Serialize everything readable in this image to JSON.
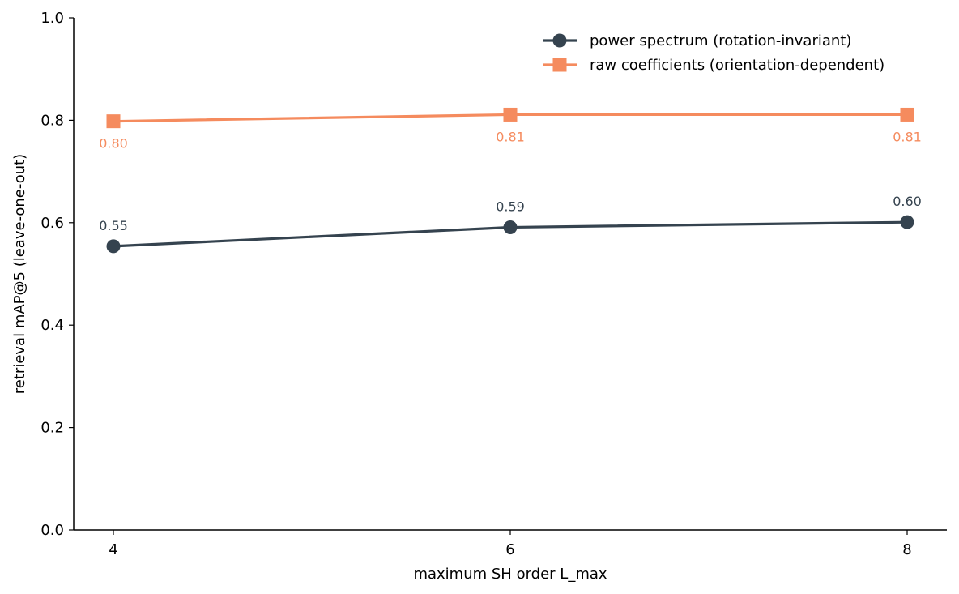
{
  "chart_data": {
    "type": "line",
    "title": "",
    "xlabel": "maximum SH order L_max",
    "ylabel": "retrieval mAP@5 (leave-one-out)",
    "x": [
      4,
      6,
      8
    ],
    "x_ticks": [
      "4",
      "6",
      "8"
    ],
    "ylim": [
      0,
      1.0
    ],
    "y_ticks": [
      "0.0",
      "0.2",
      "0.4",
      "0.6",
      "0.8",
      "1.0"
    ],
    "grid": false,
    "legend_position": "top-right",
    "series": [
      {
        "name": "power spectrum (rotation-invariant)",
        "values": [
          0.554,
          0.591,
          0.601
        ],
        "labels": [
          "0.55",
          "0.59",
          "0.60"
        ],
        "marker": "circle",
        "color": "#35434f",
        "label_position": "above"
      },
      {
        "name": "raw coefficients (orientation-dependent)",
        "values": [
          0.798,
          0.811,
          0.811
        ],
        "labels": [
          "0.80",
          "0.81",
          "0.81"
        ],
        "marker": "square",
        "color": "#f58b5e",
        "label_position": "below"
      }
    ]
  }
}
